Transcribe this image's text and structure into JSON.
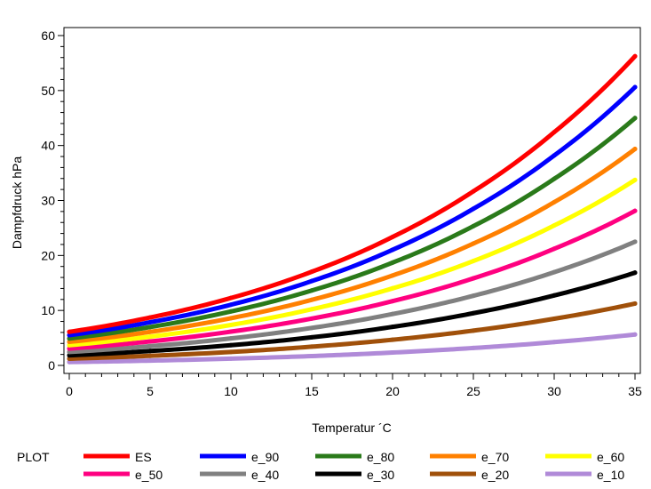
{
  "chart_data": {
    "type": "line",
    "title": "",
    "xlabel": "Temperatur  ´C",
    "ylabel": "Dampfdruck hPa",
    "xlim": [
      0,
      35
    ],
    "ylim": [
      0,
      60
    ],
    "xticks": [
      0,
      5,
      10,
      15,
      20,
      25,
      30,
      35
    ],
    "yticks": [
      0,
      10,
      20,
      30,
      40,
      50,
      60
    ],
    "x": [
      0,
      5,
      10,
      15,
      20,
      25,
      30,
      35
    ],
    "grid": false,
    "legend_title": "PLOT",
    "legend_position": "bottom",
    "series": [
      {
        "name": "ES",
        "color": "#ff0000",
        "values": [
          6.11,
          8.72,
          12.27,
          17.04,
          23.37,
          31.67,
          42.43,
          56.24
        ]
      },
      {
        "name": "e_90",
        "color": "#0000ff",
        "values": [
          5.5,
          7.85,
          11.04,
          15.34,
          21.03,
          28.5,
          38.19,
          50.62
        ]
      },
      {
        "name": "e_80",
        "color": "#2a7a1a",
        "values": [
          4.89,
          6.98,
          9.82,
          13.63,
          18.7,
          25.34,
          33.94,
          44.99
        ]
      },
      {
        "name": "e_70",
        "color": "#ff8000",
        "values": [
          4.28,
          6.1,
          8.59,
          11.93,
          16.36,
          22.17,
          29.7,
          39.37
        ]
      },
      {
        "name": "e_60",
        "color": "#ffff00",
        "values": [
          3.67,
          5.23,
          7.36,
          10.22,
          14.02,
          19.0,
          25.46,
          33.74
        ]
      },
      {
        "name": "e_50",
        "color": "#ff0080",
        "values": [
          3.06,
          4.36,
          6.14,
          8.52,
          11.69,
          15.84,
          21.22,
          28.12
        ]
      },
      {
        "name": "e_40",
        "color": "#808080",
        "values": [
          2.44,
          3.49,
          4.91,
          6.82,
          9.35,
          12.67,
          16.97,
          22.5
        ]
      },
      {
        "name": "e_30",
        "color": "#000000",
        "values": [
          1.83,
          2.62,
          3.68,
          5.11,
          7.01,
          9.5,
          12.73,
          16.87
        ]
      },
      {
        "name": "e_20",
        "color": "#a0500a",
        "values": [
          1.22,
          1.74,
          2.45,
          3.41,
          4.67,
          6.33,
          8.49,
          11.25
        ]
      },
      {
        "name": "e_10",
        "color": "#b08ad8",
        "values": [
          0.61,
          0.87,
          1.23,
          1.7,
          2.34,
          3.17,
          4.24,
          5.62
        ]
      }
    ]
  }
}
